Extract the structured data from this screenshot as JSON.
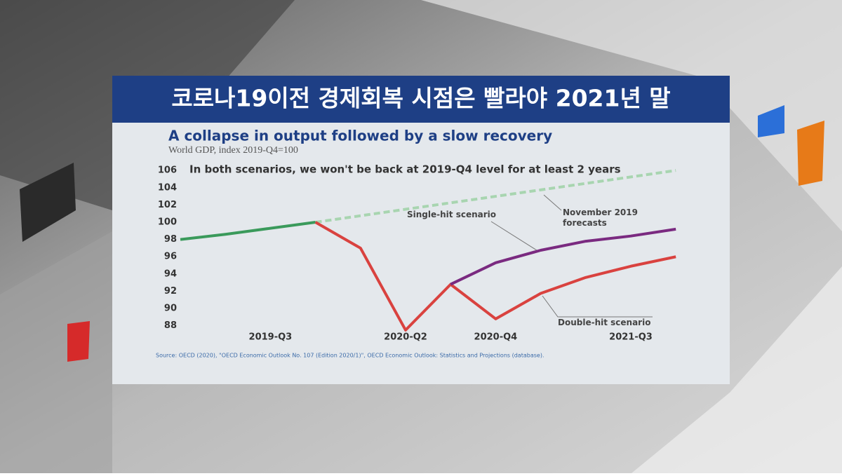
{
  "headline": "코로나19이전 경제회복 시점은 빨라야 2021년 말",
  "chart_data": {
    "type": "line",
    "title": "A collapse in output followed by a slow recovery",
    "subtitle": "World GDP, index 2019-Q4=100",
    "annotation": "In both scenarios, we won't be back at 2019-Q4 level for at least 2 years",
    "source": "Source: OECD (2020), \"OECD Economic Outlook No. 107 (Edition 2020/1)\", OECD Economic Outlook: Statistics and Projections (database).",
    "categories": [
      null,
      null,
      "2019-Q3",
      null,
      null,
      "2020-Q2",
      null,
      "2020-Q4",
      null,
      null,
      "2021-Q3",
      null
    ],
    "series": [
      {
        "color": "#3a9a5b",
        "values": [
          98,
          98.6,
          99.3,
          100,
          null,
          null,
          null,
          null,
          null,
          null,
          null,
          null
        ]
      },
      {
        "name": "November 2019 forecasts",
        "color": "#a8d5b0",
        "dashed": true,
        "values": [
          null,
          null,
          null,
          100,
          100.75,
          101.5,
          102.25,
          103,
          103.75,
          104.5,
          105.25,
          106
        ]
      },
      {
        "name": "Double-hit scenario",
        "color": "#d9423f",
        "values": [
          null,
          null,
          null,
          100,
          97,
          87.5,
          92.8,
          88.8,
          91.75,
          93.6,
          94.9,
          96
        ]
      },
      {
        "name": "Single-hit scenario",
        "color": "#7a2a80",
        "values": [
          null,
          null,
          null,
          null,
          null,
          null,
          92.8,
          95.3,
          96.75,
          97.8,
          98.4,
          99.2
        ]
      }
    ],
    "ylim": [
      87,
      106.5
    ],
    "yticks": [
      88,
      90,
      92,
      94,
      96,
      98,
      100,
      102,
      104,
      106
    ],
    "grid": false
  }
}
